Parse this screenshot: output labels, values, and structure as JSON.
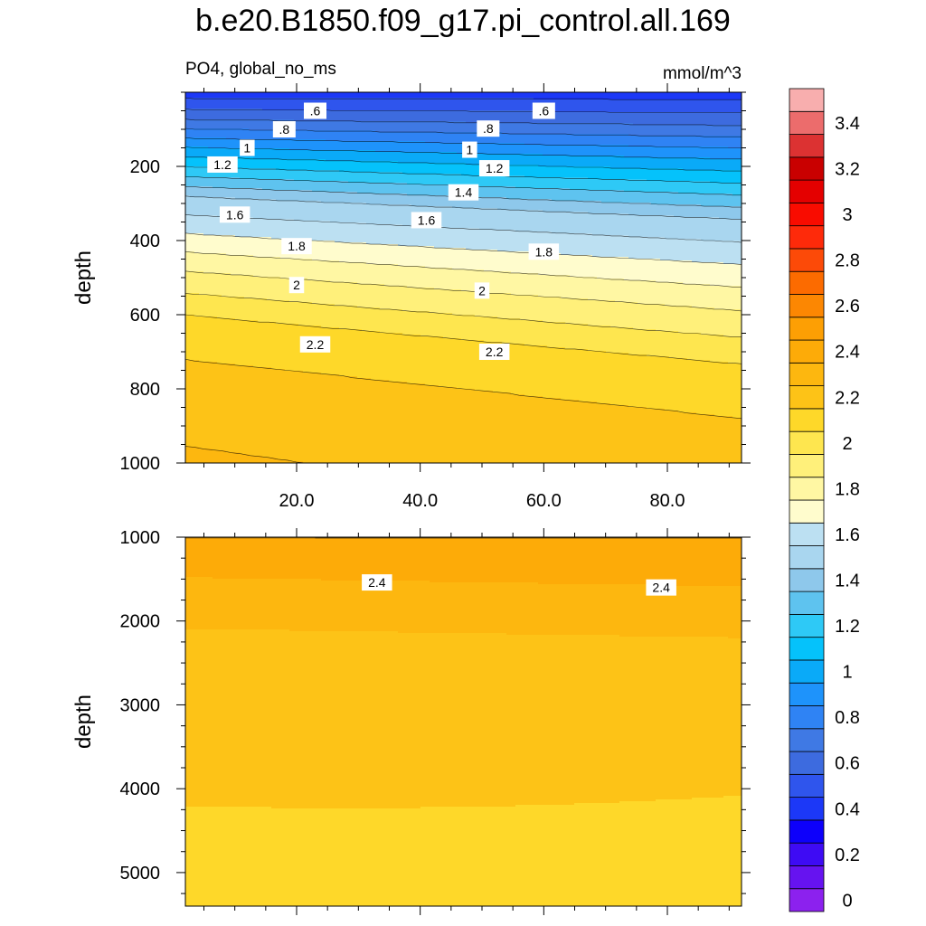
{
  "chart_data": {
    "type": "contour",
    "title": "b.e20.B1850.f09_g17.pi_control.all.169",
    "subtitle_left": "PO4, global_no_ms",
    "subtitle_right": "mmol/m^3",
    "ylabel": "depth",
    "x_ticks": [
      "20.0",
      "40.0",
      "60.0",
      "80.0"
    ],
    "x_tick_values": [
      20,
      40,
      60,
      80
    ],
    "xlim": [
      2,
      92
    ],
    "colorbar": {
      "levels": [
        0,
        0.1,
        0.2,
        0.3,
        0.4,
        0.5,
        0.6,
        0.7,
        0.8,
        0.9,
        1,
        1.1,
        1.2,
        1.3,
        1.4,
        1.5,
        1.6,
        1.7,
        1.8,
        1.9,
        2,
        2.1,
        2.2,
        2.3,
        2.4,
        2.5,
        2.6,
        2.7,
        2.8,
        2.9,
        3,
        3.1,
        3.2,
        3.3,
        3.4,
        3.5
      ],
      "tick_labels": [
        "0",
        "0.2",
        "0.4",
        "0.6",
        "0.8",
        "1",
        "1.2",
        "1.4",
        "1.6",
        "1.8",
        "2",
        "2.2",
        "2.4",
        "2.6",
        "2.8",
        "3",
        "3.2",
        "3.4"
      ],
      "colors": [
        "#8c21ee",
        "#6613f0",
        "#3e0bf4",
        "#0d00fb",
        "#1c38f7",
        "#2f55ed",
        "#3d6bdf",
        "#3f79e4",
        "#2f83f4",
        "#1e93fb",
        "#0aaaf8",
        "#05c2fb",
        "#2ec9f6",
        "#5ec3ef",
        "#8ec8eb",
        "#a9d6ef",
        "#bce0f2",
        "#fffccd",
        "#fff7a3",
        "#fff07a",
        "#fee64f",
        "#fed829",
        "#fdc317",
        "#fdb70f",
        "#fdab08",
        "#fd9f04",
        "#fc8702",
        "#fc6b00",
        "#fc4a08",
        "#fe2a0a",
        "#f90c00",
        "#e40000",
        "#c90000",
        "#dc3232",
        "#ec6c6c",
        "#f8aeae"
      ]
    },
    "panels": [
      {
        "name": "upper",
        "ylim": [
          0,
          1000
        ],
        "y_ticks": [
          "200",
          "400",
          "600",
          "800",
          "1000"
        ],
        "y_tick_values": [
          200,
          400,
          600,
          800,
          1000
        ],
        "contour_labels": [
          {
            "text": ".6",
            "x": 23,
            "y": 50
          },
          {
            "text": ".6",
            "x": 60,
            "y": 50
          },
          {
            "text": ".8",
            "x": 18,
            "y": 100
          },
          {
            "text": ".8",
            "x": 51,
            "y": 98
          },
          {
            "text": "1",
            "x": 12,
            "y": 150
          },
          {
            "text": "1",
            "x": 48,
            "y": 155
          },
          {
            "text": "1.2",
            "x": 8,
            "y": 195
          },
          {
            "text": "1.2",
            "x": 52,
            "y": 205
          },
          {
            "text": "1.4",
            "x": 47,
            "y": 270
          },
          {
            "text": "1.6",
            "x": 10,
            "y": 330
          },
          {
            "text": "1.6",
            "x": 41,
            "y": 345
          },
          {
            "text": "1.8",
            "x": 20,
            "y": 415
          },
          {
            "text": "1.8",
            "x": 60,
            "y": 430
          },
          {
            "text": "2",
            "x": 20,
            "y": 520
          },
          {
            "text": "2",
            "x": 50,
            "y": 535
          },
          {
            "text": "2.2",
            "x": 23,
            "y": 680
          },
          {
            "text": "2.2",
            "x": 52,
            "y": 700
          }
        ]
      },
      {
        "name": "lower",
        "ylim": [
          1000,
          5400
        ],
        "y_ticks": [
          "1000",
          "2000",
          "3000",
          "4000",
          "5000"
        ],
        "y_tick_values": [
          1000,
          2000,
          3000,
          4000,
          5000
        ],
        "contour_labels": [
          {
            "text": "2.4",
            "x": 33,
            "y": 1540
          },
          {
            "text": "2.4",
            "x": 79,
            "y": 1600
          }
        ]
      }
    ]
  }
}
